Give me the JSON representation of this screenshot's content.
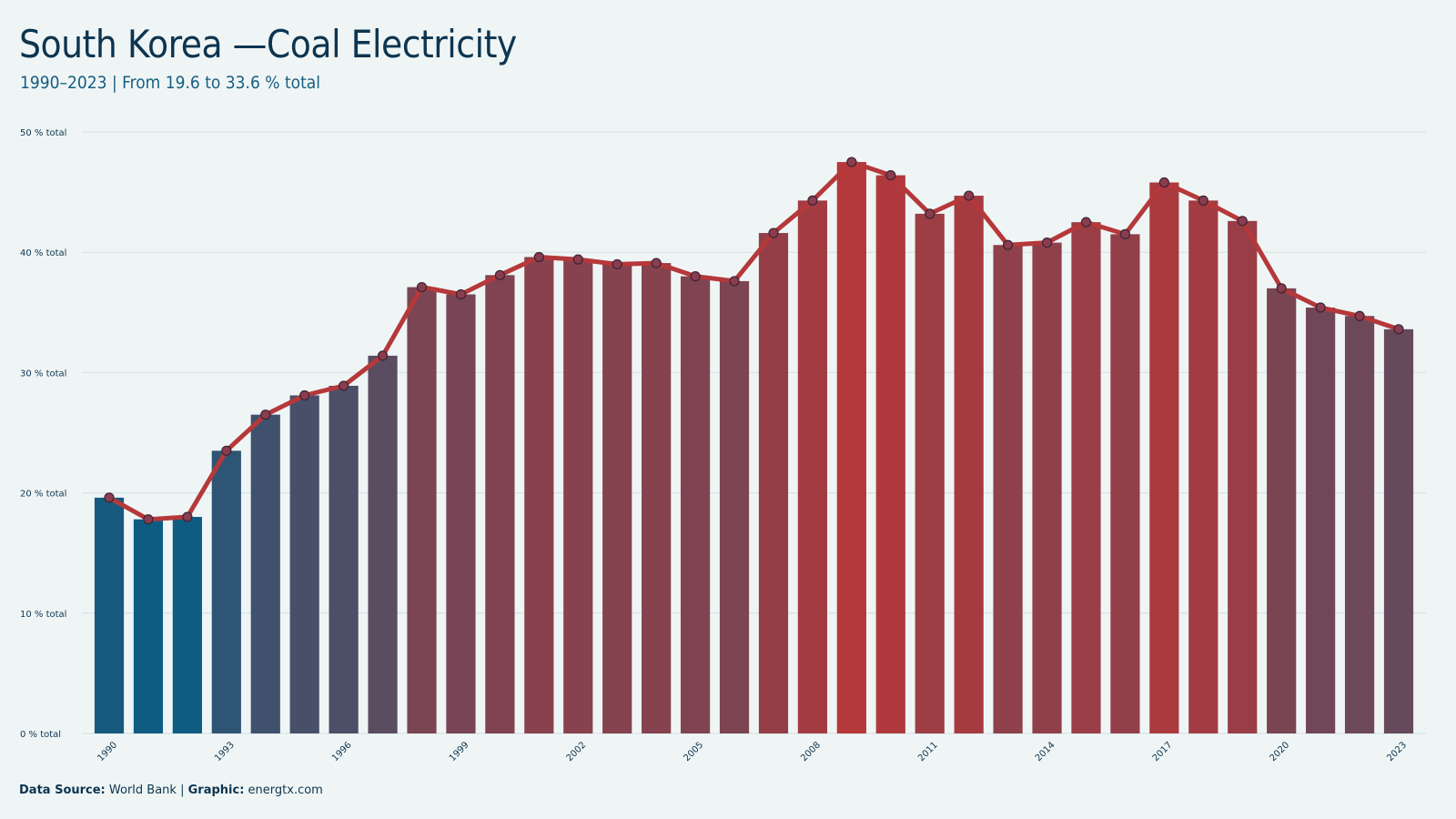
{
  "header": {
    "title": "South Korea  —Coal Electricity",
    "subtitle": "1990–2023 | From 19.6 to 33.6 % total"
  },
  "footer": {
    "source_label": "Data Source:",
    "source_value": "World Bank",
    "separator": "|",
    "graphic_label": "Graphic:",
    "graphic_value": "energtx.com"
  },
  "colors": {
    "background": "#eff5f5",
    "line": "#b5383a",
    "low": "#0e5c82",
    "high": "#b5383a",
    "text": "#0d3550"
  },
  "chart_data": {
    "type": "bar",
    "title": "South Korea  —Coal Electricity",
    "subtitle": "1990–2023 | From 19.6 to 33.6 % total",
    "xlabel": "",
    "ylabel": "",
    "unit": "% total",
    "ylim": [
      0,
      50
    ],
    "yticks": [
      0,
      10,
      20,
      30,
      40,
      50
    ],
    "ytick_labels": [
      "0 % total",
      "10 % total",
      "20 % total",
      "30 % total",
      "40 % total",
      "50 % total"
    ],
    "xtick_labels": [
      "1990",
      "1993",
      "1996",
      "1999",
      "2002",
      "2005",
      "2008",
      "2011",
      "2014",
      "2017",
      "2020",
      "2023"
    ],
    "grid": true,
    "categories": [
      "1990",
      "1991",
      "1992",
      "1993",
      "1994",
      "1995",
      "1996",
      "1997",
      "1998",
      "1999",
      "2000",
      "2001",
      "2002",
      "2003",
      "2004",
      "2005",
      "2006",
      "2007",
      "2008",
      "2009",
      "2010",
      "2011",
      "2012",
      "2013",
      "2014",
      "2015",
      "2016",
      "2017",
      "2018",
      "2019",
      "2020",
      "2021",
      "2022",
      "2023"
    ],
    "values": [
      19.6,
      17.8,
      18.0,
      23.5,
      26.5,
      28.1,
      28.9,
      31.4,
      37.1,
      36.5,
      38.1,
      39.6,
      39.4,
      39.0,
      39.1,
      38.0,
      37.6,
      41.6,
      44.3,
      47.5,
      46.4,
      43.2,
      44.7,
      40.6,
      40.8,
      42.5,
      41.5,
      45.8,
      44.3,
      42.6,
      37.0,
      35.4,
      34.7,
      33.6
    ],
    "overlay": "line-with-markers"
  }
}
